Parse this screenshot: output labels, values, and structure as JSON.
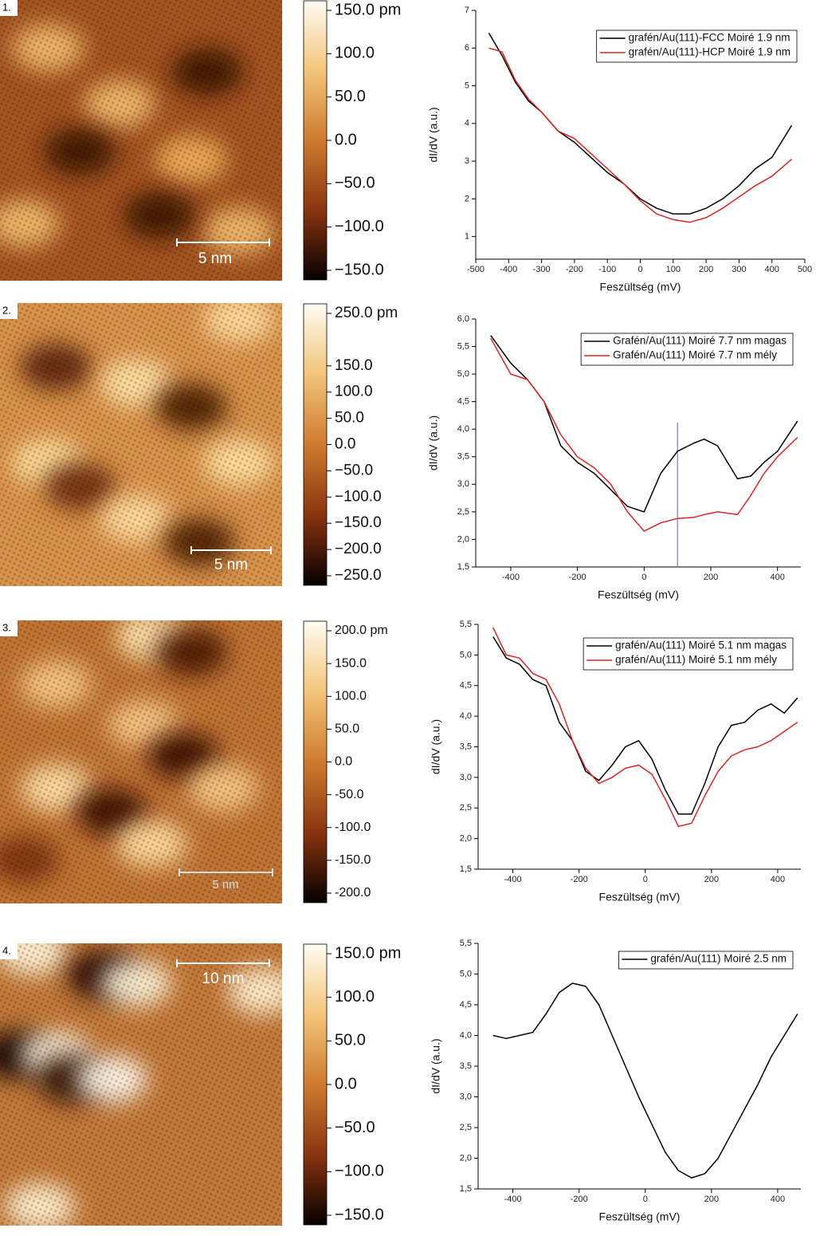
{
  "panels": [
    {
      "label": "1.",
      "scale_bar": "5 nm",
      "colorbar": {
        "lim": [
          -150,
          150
        ],
        "ticks": [
          {
            "value": 150,
            "label": "150.0 pm"
          },
          {
            "value": 100,
            "label": "100.0"
          },
          {
            "value": 50,
            "label": "50.0"
          },
          {
            "value": 0,
            "label": "0.0"
          },
          {
            "value": -50,
            "label": "−50.0"
          },
          {
            "value": -100,
            "label": "−100.0"
          },
          {
            "value": -150,
            "label": "−150.0"
          }
        ]
      }
    },
    {
      "label": "2.",
      "scale_bar": "5 nm",
      "colorbar": {
        "lim": [
          -250,
          250
        ],
        "ticks": [
          {
            "value": 250,
            "label": "250.0 pm"
          },
          {
            "value": 150,
            "label": "150.0"
          },
          {
            "value": 100,
            "label": "100.0"
          },
          {
            "value": 50,
            "label": "50.0"
          },
          {
            "value": 0,
            "label": "0.0"
          },
          {
            "value": -50,
            "label": "−50.0"
          },
          {
            "value": -100,
            "label": "−100.0"
          },
          {
            "value": -150,
            "label": "−150.0"
          },
          {
            "value": -200,
            "label": "−200.0"
          },
          {
            "value": -250,
            "label": "−250.0"
          }
        ]
      }
    },
    {
      "label": "3.",
      "scale_bar": "5 nm",
      "colorbar": {
        "lim": [
          -200,
          200
        ],
        "ticks": [
          {
            "value": 200,
            "label": "200.0 pm"
          },
          {
            "value": 150,
            "label": "150.0"
          },
          {
            "value": 100,
            "label": "100.0"
          },
          {
            "value": 50,
            "label": "50.0"
          },
          {
            "value": 0,
            "label": "0.0"
          },
          {
            "value": -50,
            "label": "-50.0"
          },
          {
            "value": -100,
            "label": "-100.0"
          },
          {
            "value": -150,
            "label": "-150.0"
          },
          {
            "value": -200,
            "label": "-200.0"
          }
        ]
      }
    },
    {
      "label": "4.",
      "scale_bar": "10 nm",
      "colorbar": {
        "lim": [
          -150,
          150
        ],
        "ticks": [
          {
            "value": 150,
            "label": "150.0 pm"
          },
          {
            "value": 100,
            "label": "100.0"
          },
          {
            "value": 50,
            "label": "50.0"
          },
          {
            "value": 0,
            "label": "0.0"
          },
          {
            "value": -50,
            "label": "−50.0"
          },
          {
            "value": -100,
            "label": "−100.0"
          },
          {
            "value": -150,
            "label": "−150.0"
          }
        ]
      }
    }
  ],
  "chart_data": [
    {
      "type": "line",
      "x_label": "Feszültség (mV)",
      "y_label": "dI/dV (a.u.)",
      "xlim": [
        -500,
        500
      ],
      "xticks": [
        -500,
        -400,
        -300,
        -200,
        -100,
        0,
        100,
        200,
        300,
        400,
        500
      ],
      "ylim": [
        0.4,
        7
      ],
      "yticks": [
        1,
        2,
        3,
        4,
        5,
        6,
        7
      ],
      "x": [
        -460,
        -420,
        -380,
        -340,
        -300,
        -250,
        -200,
        -150,
        -100,
        -50,
        0,
        50,
        100,
        150,
        200,
        250,
        300,
        350,
        400,
        460
      ],
      "series": [
        {
          "name": "grafén/Au(111)-FCC Moiré 1.9 nm",
          "color": "#000000",
          "values": [
            6.4,
            5.8,
            5.1,
            4.6,
            4.3,
            3.8,
            3.5,
            3.1,
            2.7,
            2.4,
            2.0,
            1.75,
            1.6,
            1.6,
            1.75,
            2.0,
            2.35,
            2.8,
            3.1,
            3.95
          ]
        },
        {
          "name": "grafén/Au(111)-HCP Moiré 1.9 nm",
          "color": "#d62728",
          "values": [
            6.0,
            5.9,
            5.15,
            4.65,
            4.3,
            3.8,
            3.6,
            3.2,
            2.8,
            2.4,
            1.95,
            1.6,
            1.45,
            1.38,
            1.5,
            1.75,
            2.05,
            2.35,
            2.6,
            3.05
          ]
        }
      ]
    },
    {
      "type": "line",
      "x_label": "Feszültség (mV)",
      "y_label": "dI/dV (a.u.)",
      "xlim": [
        -505,
        470
      ],
      "xticks": [
        -400,
        -200,
        0,
        200,
        400
      ],
      "ylim": [
        1.5,
        6.0
      ],
      "yticks": [
        {
          "value": 1.5,
          "label": "1,5"
        },
        {
          "value": 2.0,
          "label": "2,0"
        },
        {
          "value": 2.5,
          "label": "2,5"
        },
        {
          "value": 3.0,
          "label": "3,0"
        },
        {
          "value": 3.5,
          "label": "3,5"
        },
        {
          "value": 4.0,
          "label": "4,0"
        },
        {
          "value": 4.5,
          "label": "4,5"
        },
        {
          "value": 5.0,
          "label": "5,0"
        },
        {
          "value": 5.5,
          "label": "5,5"
        },
        {
          "value": 6.0,
          "label": "6,0"
        }
      ],
      "vline": 100,
      "x": [
        -460,
        -400,
        -350,
        -300,
        -250,
        -200,
        -150,
        -100,
        -50,
        0,
        50,
        100,
        150,
        180,
        220,
        280,
        320,
        360,
        400,
        460
      ],
      "series": [
        {
          "name": "Grafén/Au(111) Moiré 7.7 nm magas",
          "color": "#000000",
          "values": [
            5.7,
            5.2,
            4.9,
            4.5,
            3.7,
            3.4,
            3.2,
            2.9,
            2.6,
            2.5,
            3.2,
            3.6,
            3.75,
            3.82,
            3.7,
            3.1,
            3.15,
            3.4,
            3.6,
            4.15
          ]
        },
        {
          "name": "Grafén/Au(111) Moiré 7.7 nm mély",
          "color": "#d62728",
          "values": [
            5.65,
            5.0,
            4.9,
            4.5,
            3.9,
            3.5,
            3.3,
            3.0,
            2.5,
            2.15,
            2.3,
            2.38,
            2.4,
            2.45,
            2.5,
            2.45,
            2.8,
            3.2,
            3.5,
            3.85
          ]
        }
      ]
    },
    {
      "type": "line",
      "x_label": "Feszültség (mV)",
      "y_label": "dI/dV (a.u.)",
      "xlim": [
        -505,
        470
      ],
      "xticks": [
        -400,
        -200,
        0,
        200,
        400
      ],
      "ylim": [
        1.5,
        5.5
      ],
      "yticks": [
        {
          "value": 1.5,
          "label": "1,5"
        },
        {
          "value": 2.0,
          "label": "2,0"
        },
        {
          "value": 2.5,
          "label": "2,5"
        },
        {
          "value": 3.0,
          "label": "3,0"
        },
        {
          "value": 3.5,
          "label": "3,5"
        },
        {
          "value": 4.0,
          "label": "4,0"
        },
        {
          "value": 4.5,
          "label": "4,5"
        },
        {
          "value": 5.0,
          "label": "5,0"
        },
        {
          "value": 5.5,
          "label": "5,5"
        }
      ],
      "x": [
        -460,
        -420,
        -380,
        -340,
        -300,
        -260,
        -220,
        -180,
        -140,
        -100,
        -60,
        -20,
        20,
        60,
        100,
        140,
        180,
        220,
        260,
        300,
        340,
        380,
        420,
        460
      ],
      "series": [
        {
          "name": "grafén/Au(111) Moiré 5.1 nm magas",
          "color": "#000000",
          "values": [
            5.3,
            4.95,
            4.85,
            4.6,
            4.5,
            3.9,
            3.6,
            3.1,
            2.95,
            3.2,
            3.5,
            3.6,
            3.3,
            2.8,
            2.4,
            2.4,
            2.9,
            3.5,
            3.85,
            3.9,
            4.1,
            4.2,
            4.05,
            4.3
          ]
        },
        {
          "name": "grafén/Au(111) Moiré 5.1 nm mély",
          "color": "#d62728",
          "values": [
            5.45,
            5.0,
            4.95,
            4.7,
            4.6,
            4.2,
            3.6,
            3.15,
            2.9,
            3.0,
            3.15,
            3.2,
            3.05,
            2.65,
            2.2,
            2.25,
            2.7,
            3.1,
            3.35,
            3.45,
            3.5,
            3.6,
            3.75,
            3.9
          ]
        }
      ]
    },
    {
      "type": "line",
      "x_label": "Feszültség (mV)",
      "y_label": "dI/dV (a.u.)",
      "xlim": [
        -505,
        470
      ],
      "xticks": [
        -400,
        -200,
        0,
        200,
        400
      ],
      "ylim": [
        1.5,
        5.5
      ],
      "yticks": [
        {
          "value": 1.5,
          "label": "1,5"
        },
        {
          "value": 2.0,
          "label": "2,0"
        },
        {
          "value": 2.5,
          "label": "2,5"
        },
        {
          "value": 3.0,
          "label": "3,0"
        },
        {
          "value": 3.5,
          "label": "3,5"
        },
        {
          "value": 4.0,
          "label": "4,0"
        },
        {
          "value": 4.5,
          "label": "4,5"
        },
        {
          "value": 5.0,
          "label": "5,0"
        },
        {
          "value": 5.5,
          "label": "5,5"
        }
      ],
      "x": [
        -460,
        -420,
        -380,
        -340,
        -300,
        -260,
        -220,
        -180,
        -140,
        -100,
        -60,
        -20,
        20,
        60,
        100,
        140,
        180,
        220,
        260,
        300,
        340,
        380,
        420,
        460
      ],
      "series": [
        {
          "name": "grafén/Au(111) Moiré 2.5 nm",
          "color": "#000000",
          "values": [
            4.0,
            3.95,
            4.0,
            4.05,
            4.35,
            4.7,
            4.85,
            4.8,
            4.5,
            4.0,
            3.5,
            3.0,
            2.55,
            2.1,
            1.8,
            1.68,
            1.75,
            2.0,
            2.4,
            2.8,
            3.2,
            3.65,
            4.0,
            4.35
          ]
        }
      ]
    }
  ]
}
